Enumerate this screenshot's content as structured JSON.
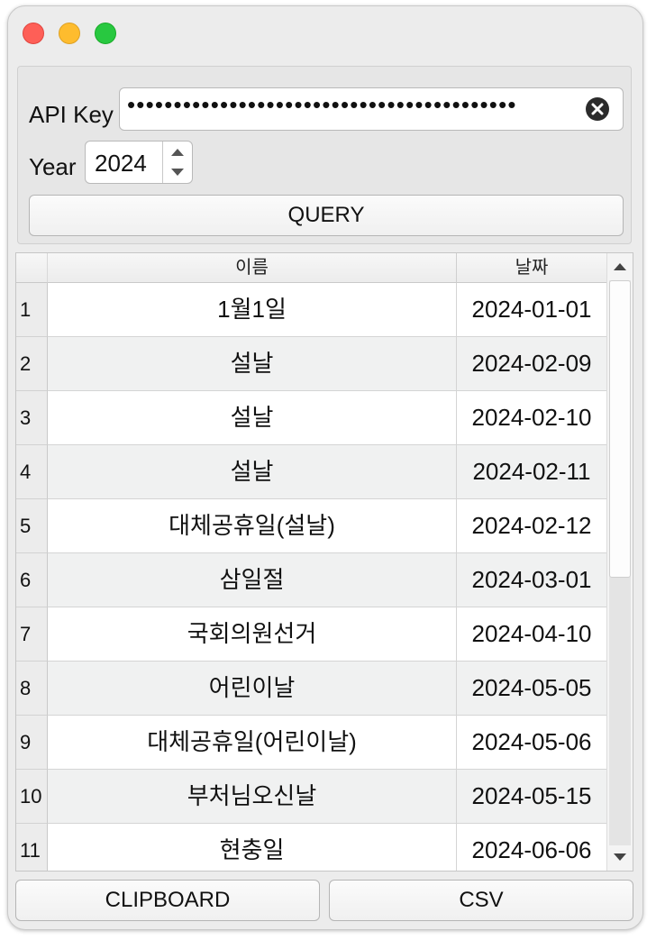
{
  "form": {
    "api_key_label": "API Key",
    "api_key_masked": "••••••••••••••••••••••••••••••••••••••••••",
    "year_label": "Year",
    "year_value": "2024",
    "query_button": "QUERY"
  },
  "table": {
    "headers": {
      "name": "이름",
      "date": "날짜"
    },
    "rows": [
      {
        "num": "1",
        "name": "1월1일",
        "date": "2024-01-01"
      },
      {
        "num": "2",
        "name": "설날",
        "date": "2024-02-09"
      },
      {
        "num": "3",
        "name": "설날",
        "date": "2024-02-10"
      },
      {
        "num": "4",
        "name": "설날",
        "date": "2024-02-11"
      },
      {
        "num": "5",
        "name": "대체공휴일(설날)",
        "date": "2024-02-12"
      },
      {
        "num": "6",
        "name": "삼일절",
        "date": "2024-03-01"
      },
      {
        "num": "7",
        "name": "국회의원선거",
        "date": "2024-04-10"
      },
      {
        "num": "8",
        "name": "어린이날",
        "date": "2024-05-05"
      },
      {
        "num": "9",
        "name": "대체공휴일(어린이날)",
        "date": "2024-05-06"
      },
      {
        "num": "10",
        "name": "부처님오신날",
        "date": "2024-05-15"
      },
      {
        "num": "11",
        "name": "현충일",
        "date": "2024-06-06"
      }
    ]
  },
  "buttons": {
    "clipboard": "CLIPBOARD",
    "csv": "CSV"
  },
  "colors": {
    "close": "#fe5f57",
    "minimize": "#febc2e",
    "zoom": "#28c840",
    "alt_row": "#f0f1f1"
  }
}
